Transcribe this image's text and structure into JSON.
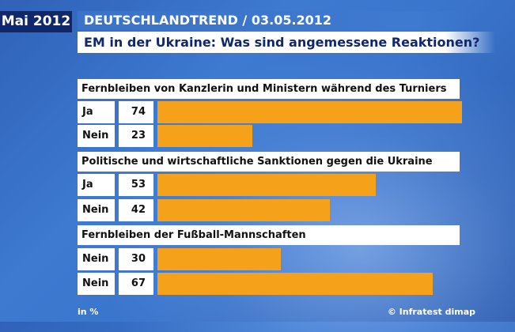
{
  "badge": "Mai 2012",
  "title": "DEUTSCHLANDTREND / 03.05.2012",
  "chart_data": {
    "type": "bar",
    "title": "EM in der Ukraine: Was sind angemessene Reaktionen?",
    "unit": "in %",
    "source": "© Infratest dimap",
    "bar_color": "#f5a21a",
    "groups": [
      {
        "label": "Fernbleiben von Kanzlerin und Ministern während des Turniers",
        "rows": [
          {
            "label": "Ja",
            "value": 74
          },
          {
            "label": "Nein",
            "value": 23
          }
        ]
      },
      {
        "label": "Politische und wirtschaftliche Sanktionen gegen die Ukraine",
        "rows": [
          {
            "label": "Ja",
            "value": 53
          },
          {
            "label": "Nein",
            "value": 42
          }
        ]
      },
      {
        "label": "Fernbleiben der Fußball-Mannschaften",
        "rows": [
          {
            "label": "Nein",
            "value": 30
          },
          {
            "label": "Nein",
            "value": 67
          }
        ]
      }
    ]
  }
}
